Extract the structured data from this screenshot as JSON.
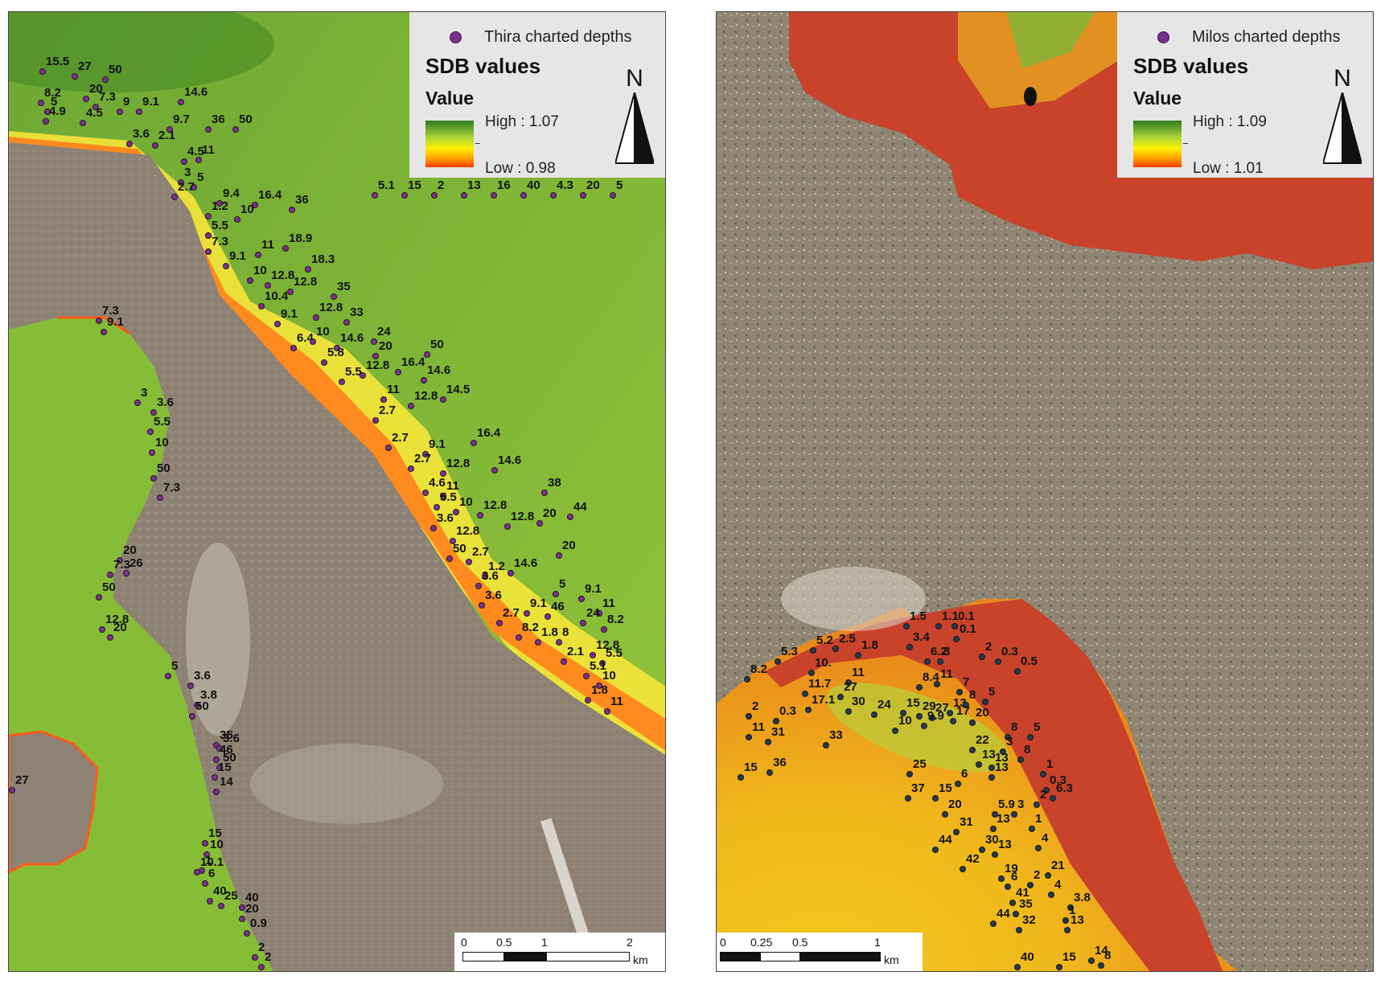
{
  "maps": [
    {
      "legend": {
        "points_label": "Thira charted depths",
        "title": "SDB values",
        "value_heading": "Value",
        "high_label": "High : 1.07",
        "low_label": "Low : 0.98"
      },
      "north_label": "N",
      "scale": {
        "ticks": [
          "0",
          "0.5",
          "1",
          "2"
        ],
        "unit": "km"
      },
      "colors": {
        "high": "#2e7d1c",
        "low": "#ff3a00",
        "point": "#7a2f8c"
      },
      "depth_labels": [
        "15.5",
        "27",
        "50",
        "8.2",
        "20",
        "5",
        "7.3",
        "9",
        "9.1",
        "14.6",
        "4.9",
        "4.5",
        "9.7",
        "36",
        "50",
        "3.6",
        "2.1",
        "4.5",
        "11",
        "3",
        "5",
        "2.7",
        "9.4",
        "16.4",
        "36",
        "1.2",
        "10",
        "5.5",
        "18.9",
        "7.3",
        "11",
        "9.1",
        "18.3",
        "10",
        "12.8",
        "12.8",
        "10.4",
        "35",
        "9.1",
        "12.8",
        "33",
        "6.4",
        "10",
        "14.6",
        "24",
        "5.8",
        "20",
        "50",
        "5.5",
        "12.8",
        "16.4",
        "14.6",
        "11",
        "12.8",
        "14.5",
        "2.7",
        "2.7",
        "16.4",
        "9.1",
        "2.7",
        "12.8",
        "14.6",
        "4.6",
        "11",
        "5.5",
        "10",
        "12.8",
        "38",
        "12.8",
        "20",
        "44",
        "3.6",
        "12.8",
        "20",
        "50",
        "2.7",
        "1.2",
        "14.6",
        "3.6",
        "5",
        "9.1",
        "11",
        "3.6",
        "9.1",
        "46",
        "24",
        "2.7",
        "8.2",
        "8.2",
        "1.8",
        "8",
        "12.8",
        "2.1",
        "5.5",
        "5.1",
        "10",
        "1.8",
        "11",
        "7.3",
        "9.1",
        "3",
        "3.6",
        "5.5",
        "10",
        "50",
        "7.3",
        "20",
        "26",
        "7.3",
        "50",
        "12.8",
        "20",
        "5",
        "3.6",
        "3.8",
        "50",
        "35",
        "3.6",
        "46",
        "50",
        "15",
        "14",
        "15",
        "10",
        "1",
        "10.1",
        "6",
        "40",
        "25",
        "40",
        "20",
        "0.9",
        "2",
        "2",
        "27",
        "5.1",
        "15",
        "2",
        "13",
        "16",
        "40",
        "4.3",
        "20",
        "5"
      ]
    },
    {
      "legend": {
        "points_label": "Milos charted depths",
        "title": "SDB values",
        "value_heading": "Value",
        "high_label": "High : 1.09",
        "low_label": "Low : 1.01"
      },
      "north_label": "N",
      "scale": {
        "ticks": [
          "0",
          "0.25",
          "0.5",
          "1"
        ],
        "unit": "km"
      },
      "colors": {
        "high": "#2e7d1c",
        "low": "#ff3a00",
        "point": "#24384c"
      },
      "depth_labels": [
        "1.5",
        "1.1",
        "0.1",
        "5.2",
        "2.5",
        "1.8",
        "3.4",
        "6.2",
        "0.1",
        "5.3",
        "10.",
        "11",
        "3",
        "2",
        "0.3",
        "0.5",
        "8.2",
        "11.7",
        "27",
        "8.4",
        "11",
        "7",
        "17.1",
        "30",
        "24",
        "15",
        "29",
        "27",
        "13",
        "8",
        "5",
        "2",
        "0.3",
        "10",
        "9.9",
        "17",
        "20",
        "8",
        "5",
        "3",
        "11",
        "31",
        "33",
        "22",
        "13",
        "13",
        "8",
        "1",
        "0.3",
        "15",
        "36",
        "25",
        "6",
        "13",
        "6.3",
        "37",
        "15",
        "2",
        "20",
        "5.9",
        "3",
        "31",
        "13",
        "1",
        "44",
        "30",
        "13",
        "4",
        "42",
        "19",
        "2",
        "6",
        "21",
        "4",
        "41",
        "35",
        "3.8",
        "1",
        "44",
        "32",
        "13",
        "40",
        "15",
        "14",
        "8"
      ]
    }
  ]
}
